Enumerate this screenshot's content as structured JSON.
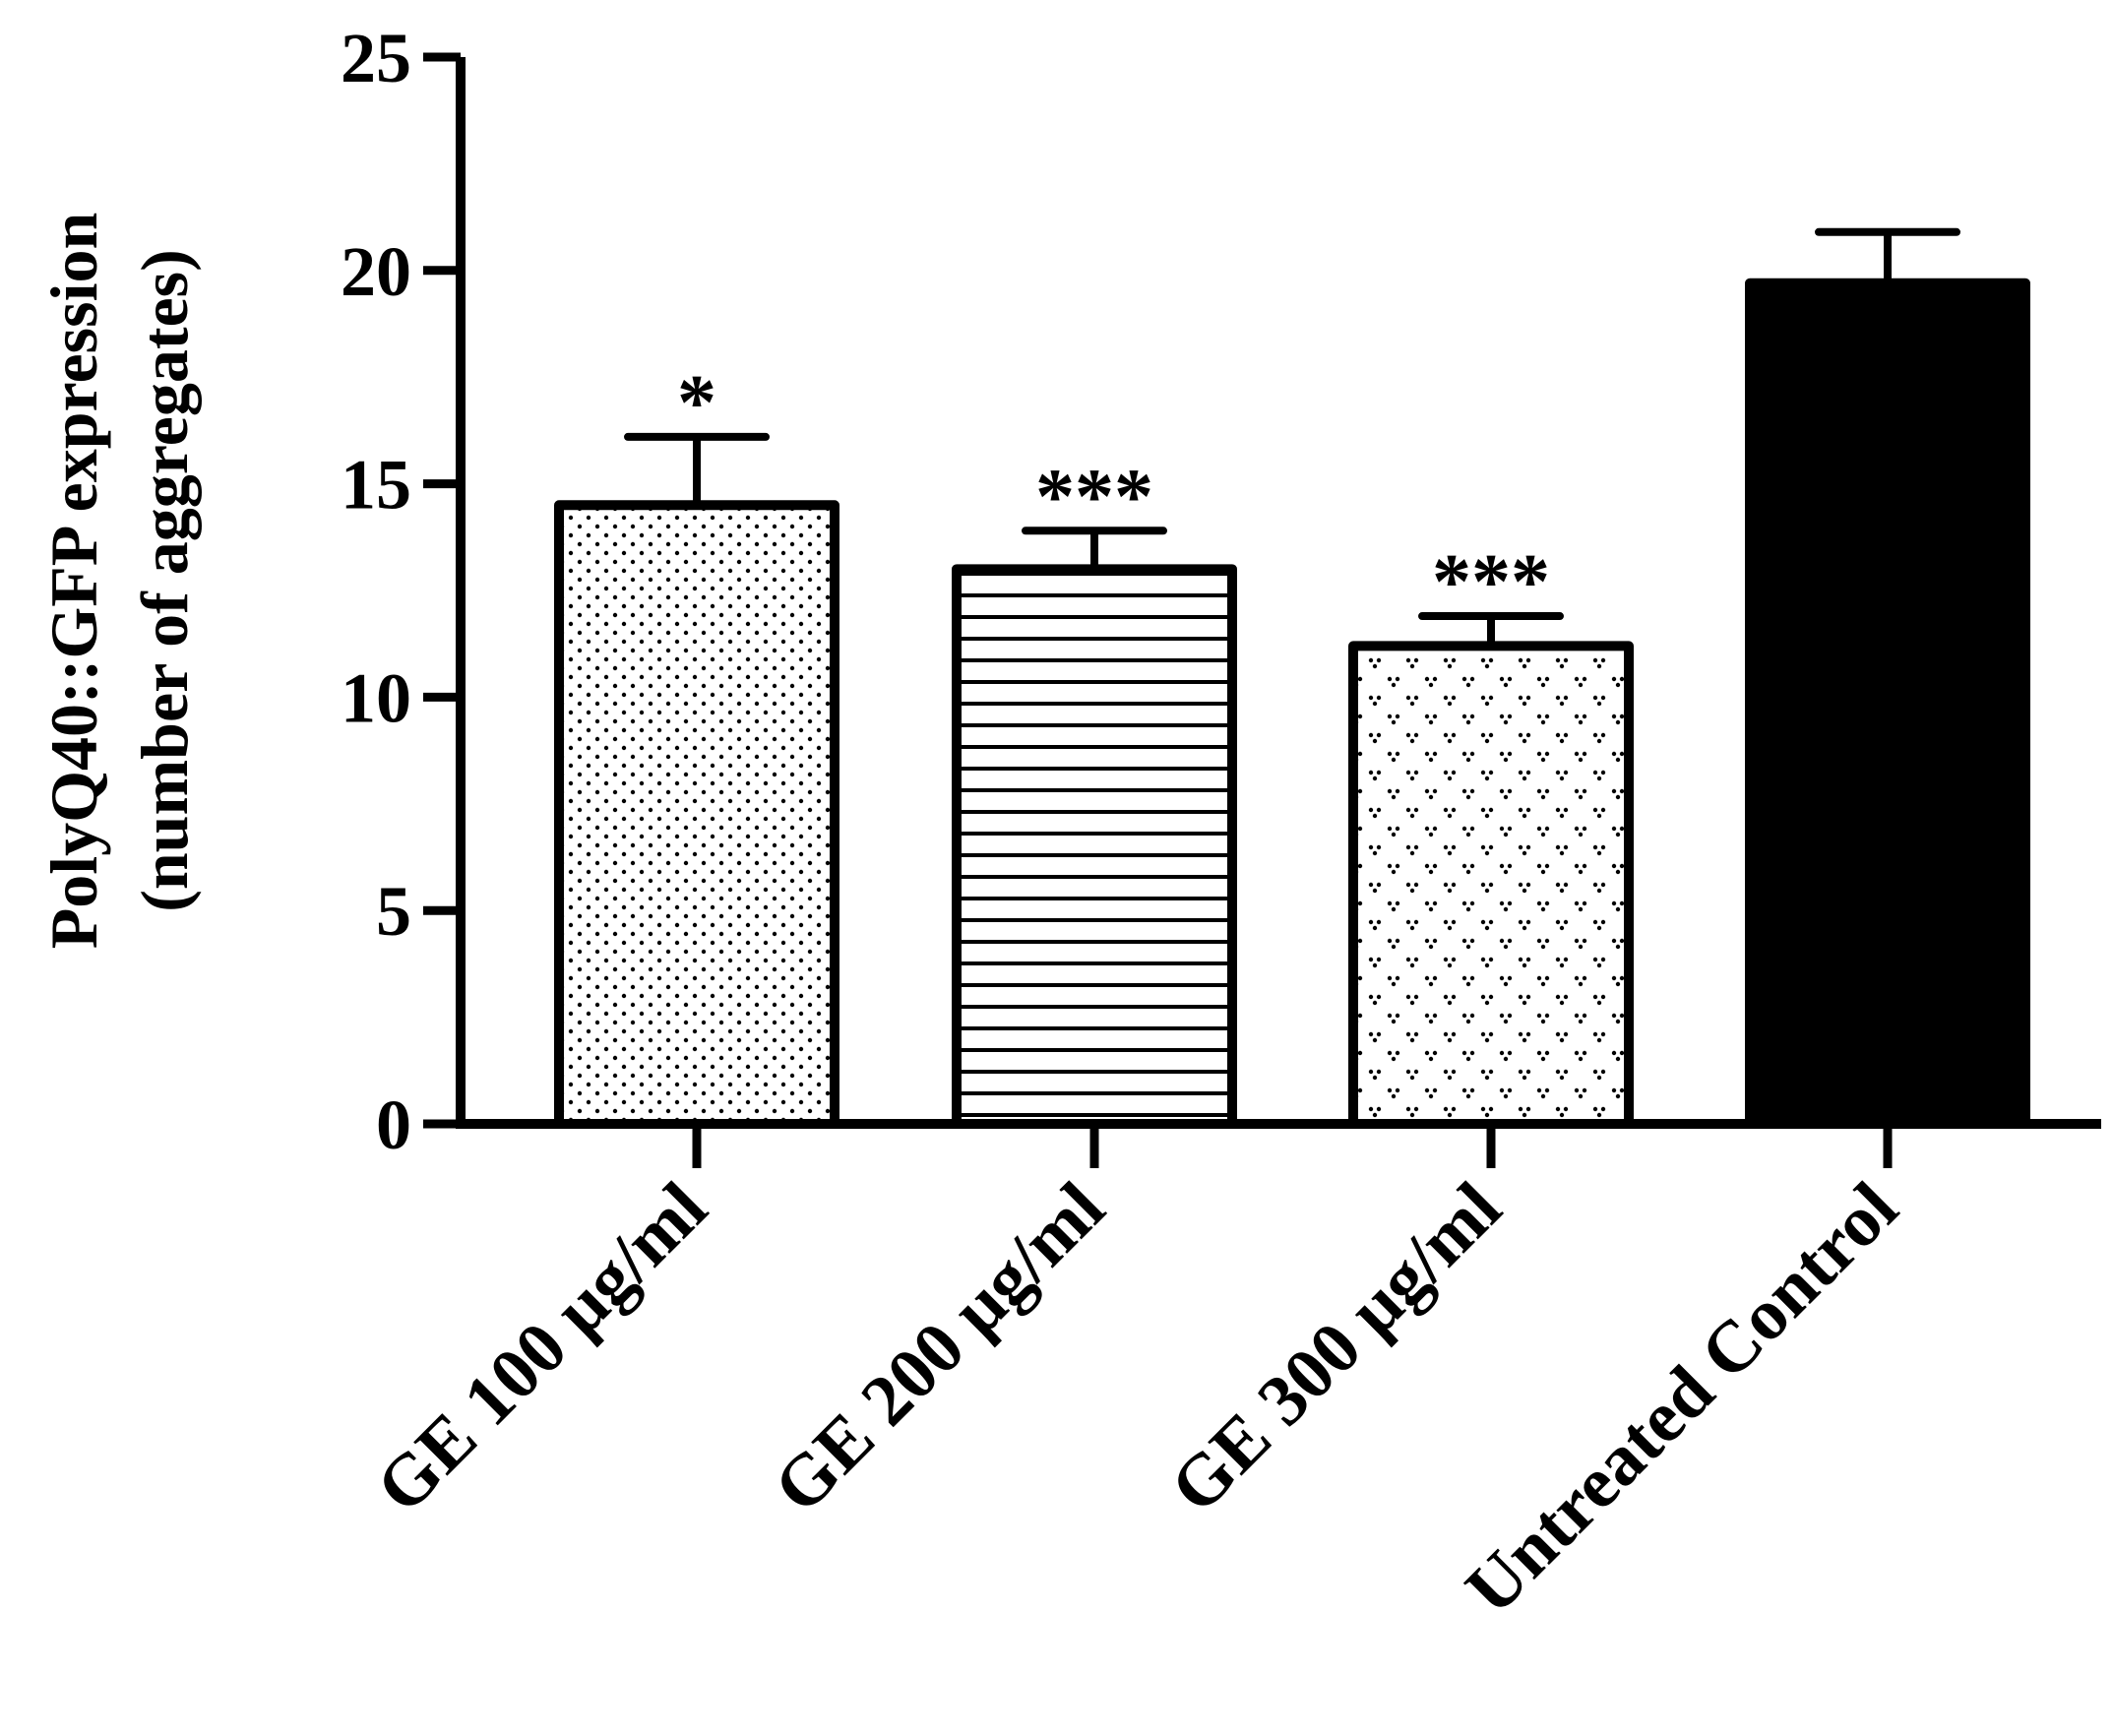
{
  "chart_data": {
    "type": "bar",
    "categories": [
      "GE 100 µg/ml",
      "GE 200 µg/ml",
      "GE 300 µg/ml",
      "Untreated Control"
    ],
    "values": [
      14.5,
      13.0,
      11.2,
      19.7
    ],
    "errors": [
      1.6,
      0.9,
      0.7,
      1.2
    ],
    "significance": [
      "*",
      "***",
      "***",
      ""
    ],
    "patterns": [
      "dots",
      "horizontal-lines",
      "v-dots",
      "solid"
    ],
    "ylabel_line1": "PolyQ40::GFP expression",
    "ylabel_line2": "(number of aggregates)",
    "ylim": [
      0,
      25
    ],
    "yticks": [
      "0",
      "5",
      "10",
      "15",
      "20",
      "25"
    ],
    "grid": false,
    "colors": {
      "bar_stroke": "#000000",
      "fill": "#ffffff",
      "solid": "#000000"
    }
  }
}
